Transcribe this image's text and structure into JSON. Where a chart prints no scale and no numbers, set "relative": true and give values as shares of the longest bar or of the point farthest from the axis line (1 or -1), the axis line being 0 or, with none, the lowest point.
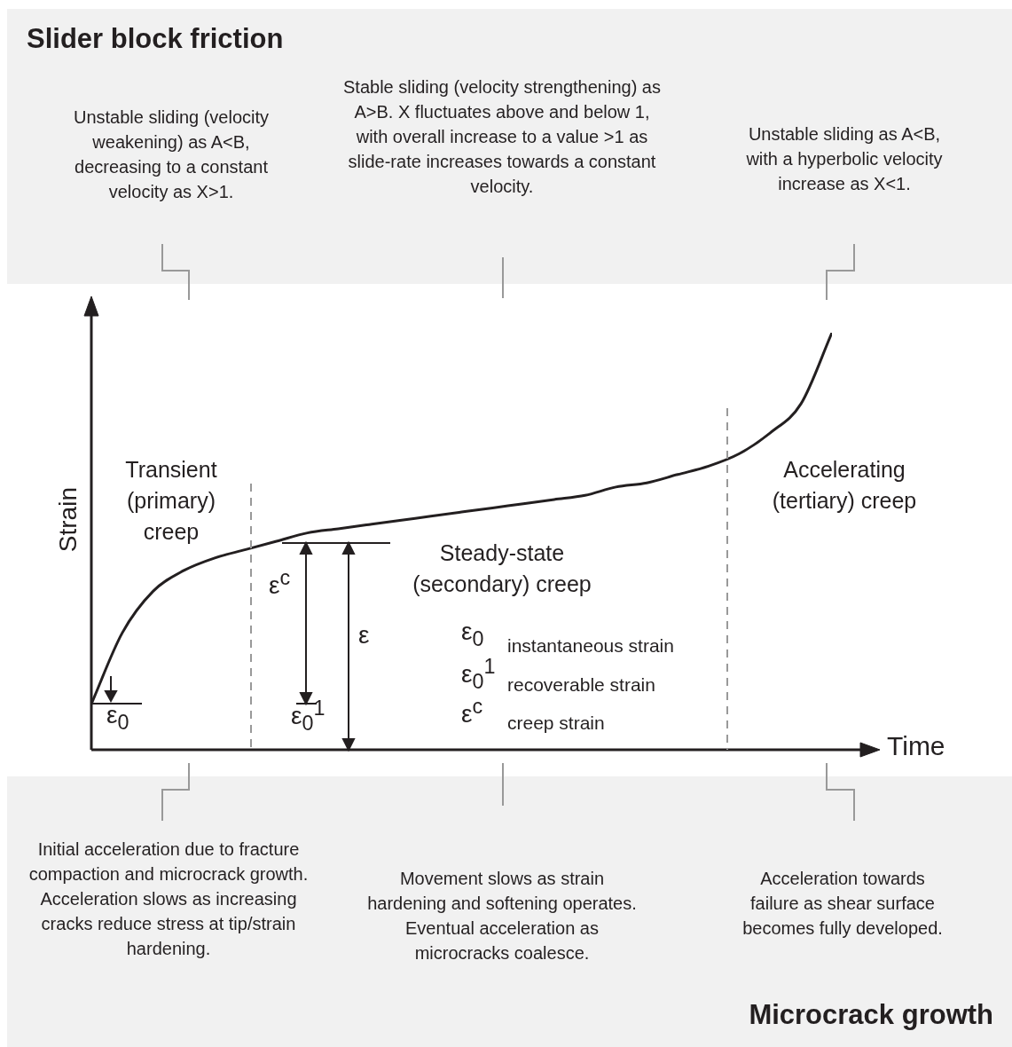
{
  "chart_data": {
    "type": "line",
    "relative": true,
    "title": "Slider block friction",
    "xlabel": "Time",
    "ylabel": "Strain",
    "legend": false,
    "marker": "none",
    "line_style": "solid",
    "categories": [
      null,
      null,
      null,
      null,
      null,
      null,
      null,
      null,
      null,
      null,
      null,
      null,
      null,
      null,
      null,
      null,
      null,
      null,
      null,
      null,
      null,
      null,
      null,
      null,
      null
    ],
    "series": [
      {
        "color": "#231f20",
        "values": [
          0.11,
          0.28,
          0.38,
          0.43,
          0.46,
          0.48,
          0.5,
          0.52,
          0.53,
          0.54,
          0.55,
          0.56,
          0.57,
          0.58,
          0.59,
          0.6,
          0.61,
          0.63,
          0.64,
          0.66,
          0.68,
          0.71,
          0.76,
          0.83,
          1.0
        ]
      }
    ],
    "annotations": [
      "Microcrack growth",
      "Unstable sliding (velocity weakening) as A<B, decreasing to a constant velocity as X>1.",
      "Stable sliding (velocity strengthening) as A>B. X fluctuates above and below 1, with overall increase to a value >1 as slide-rate increases towards a constant velocity.",
      "Unstable sliding as A<B, with a hyperbolic velocity increase as X<1.",
      "Transient (primary) creep",
      "Steady-state (secondary) creep",
      "Accelerating (tertiary) creep",
      "ε$^{c}$",
      "ε",
      "ε$_{0}$",
      "ε$_{0}$$^{1}$",
      "ε$_{0}$",
      "instantaneous strain",
      "ε$_{0}$$^{1}$",
      "recoverable strain",
      "ε$^{c}$",
      "creep strain",
      "Initial acceleration due to fracture compaction and microcrack growth. Acceleration slows as increasing cracks reduce stress at tip/strain hardening.",
      "Movement slows as strain hardening and softening operates. Eventual acceleration as microcracks coalesce.",
      "Acceleration towards failure as shear surface becomes fully developed."
    ]
  }
}
